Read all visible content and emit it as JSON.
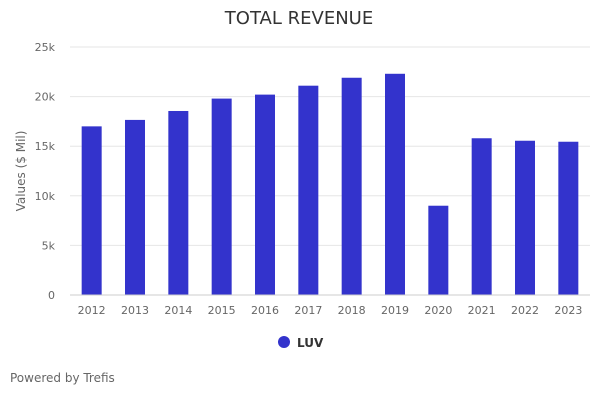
{
  "chart_data": {
    "type": "bar",
    "title": "TOTAL REVENUE",
    "xlabel": "",
    "ylabel": "Values ($ Mil)",
    "categories": [
      "2012",
      "2013",
      "2014",
      "2015",
      "2016",
      "2017",
      "2018",
      "2019",
      "2020",
      "2021",
      "2022",
      "2023"
    ],
    "series": [
      {
        "name": "LUV",
        "color": "#3333cc",
        "values": [
          17000,
          17650,
          18550,
          19800,
          20200,
          21100,
          21900,
          22300,
          9000,
          15800,
          15550,
          15450
        ]
      }
    ],
    "ylim": [
      0,
      25000
    ],
    "yticks": [
      0,
      5000,
      10000,
      15000,
      20000,
      25000
    ],
    "ytick_labels": [
      "0",
      "5k",
      "10k",
      "15k",
      "20k",
      "25k"
    ],
    "grid": true,
    "legend_position": "bottom-center"
  },
  "footer": {
    "credit": "Powered by Trefis"
  }
}
